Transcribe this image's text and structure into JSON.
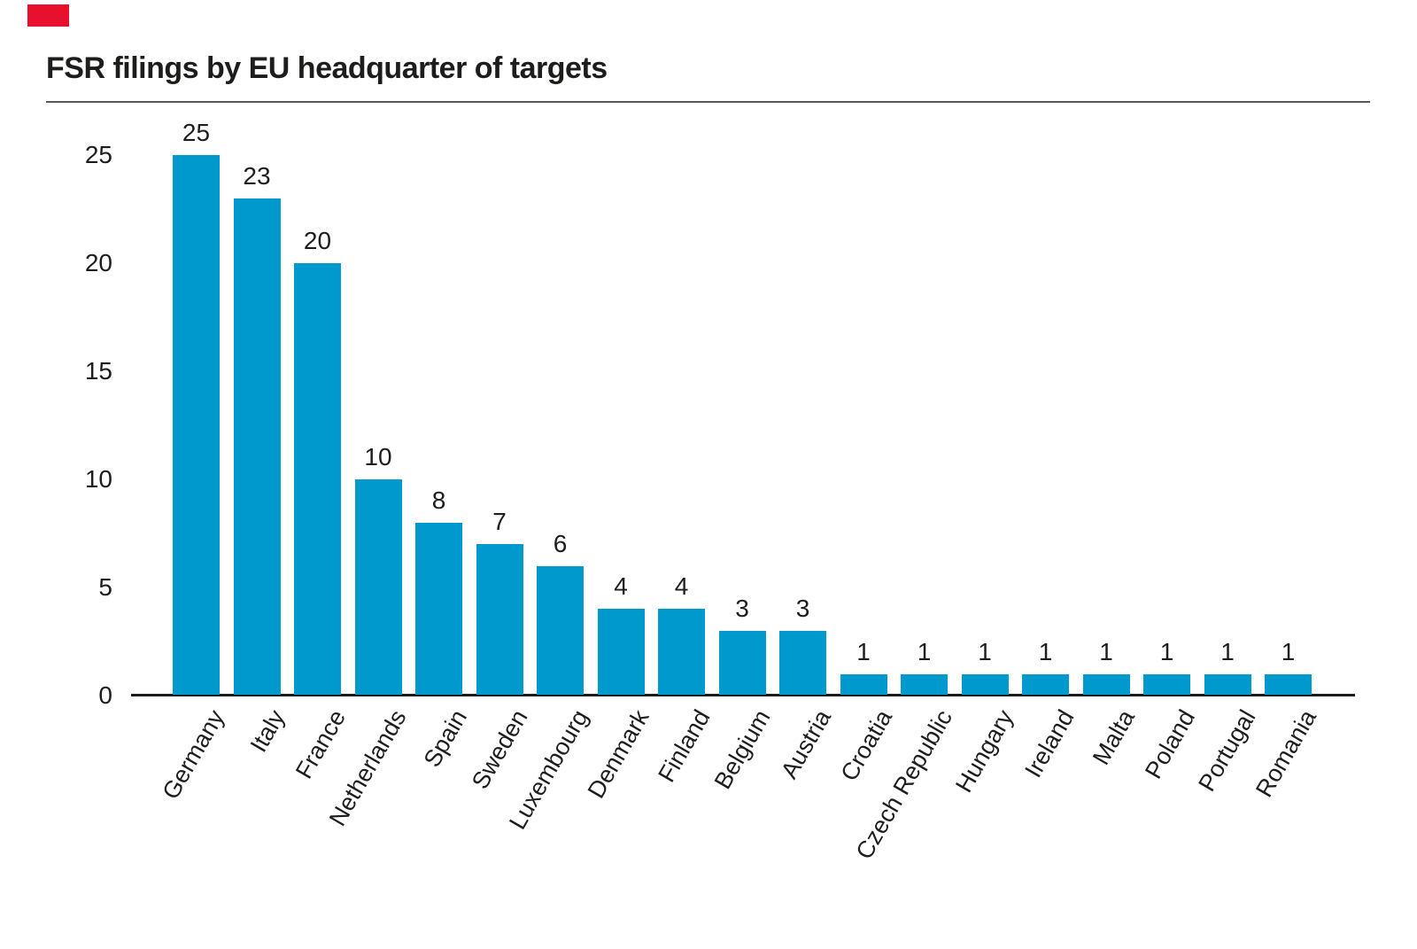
{
  "brand": {
    "mark": "red-rectangle-logo-block",
    "color": "#e8112d"
  },
  "header": {
    "title": "FSR filings by EU headquarter of targets"
  },
  "chart_data": {
    "type": "bar",
    "title": "FSR filings by EU headquarter of targets",
    "categories": [
      "Germany",
      "Italy",
      "France",
      "Netherlands",
      "Spain",
      "Sweden",
      "Luxembourg",
      "Denmark",
      "Finland",
      "Belgium",
      "Austria",
      "Croatia",
      "Czech Republic",
      "Hungary",
      "Ireland",
      "Malta",
      "Poland",
      "Portugal",
      "Romania"
    ],
    "values": [
      25,
      23,
      20,
      10,
      8,
      7,
      6,
      4,
      4,
      3,
      3,
      1,
      1,
      1,
      1,
      1,
      1,
      1,
      1
    ],
    "value_labels_shown": true,
    "xlabel": "",
    "ylabel": "",
    "ylim": [
      0,
      25
    ],
    "yticks": [
      0,
      5,
      10,
      15,
      20,
      25
    ],
    "grid": false,
    "legend": "none",
    "bar_color": "#0099ce",
    "axis_color": "#1d1d1b",
    "text_color": "#1d1d1b",
    "x_label_rotation_deg": -60
  }
}
